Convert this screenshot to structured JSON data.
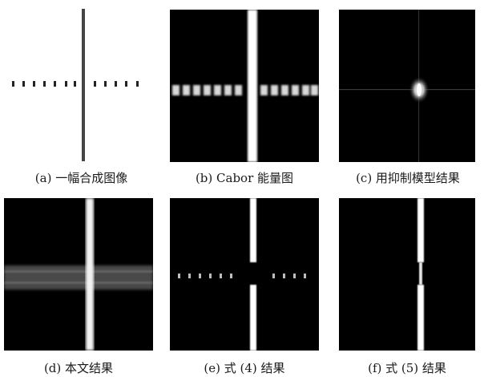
{
  "figure": {
    "panels": [
      {
        "id": "a",
        "caption": "(a) 一幅合成图像"
      },
      {
        "id": "b",
        "caption": "(b) Cabor 能量图"
      },
      {
        "id": "c",
        "caption": "(c) 用抑制模型结果"
      },
      {
        "id": "d",
        "caption": "(d) 本文结果"
      },
      {
        "id": "e",
        "caption": "(e) 式 (4) 结果"
      },
      {
        "id": "f",
        "caption": "(f) 式 (5) 结果"
      }
    ]
  }
}
